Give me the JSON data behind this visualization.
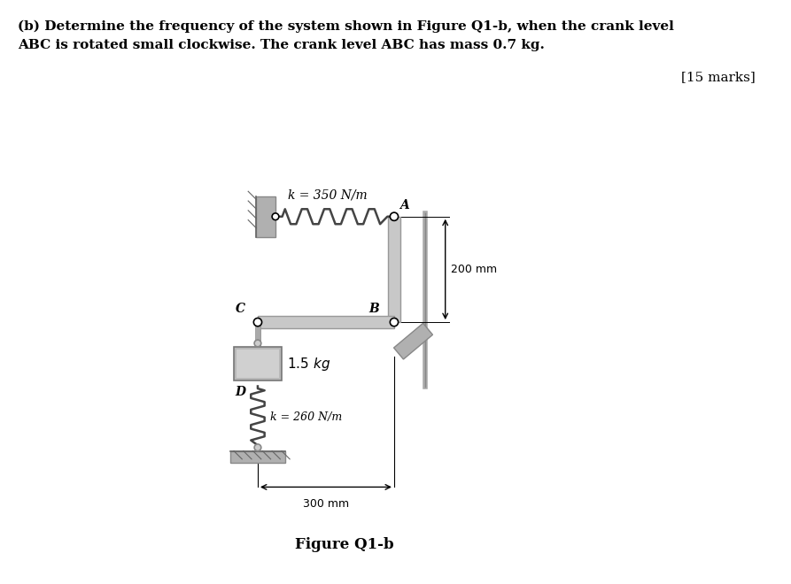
{
  "title_line1": "(b) Determine the frequency of the system shown in Figure Q1-b, when the crank level",
  "title_line2": "ABC is rotated small clockwise. The crank level ABC has mass 0.7 kg.",
  "figure_label": "Figure Q1-b",
  "marks_label": "[15 marks]",
  "k1_label": "k = 350 N/m",
  "k2_label": "k = 260 N/m",
  "dim1_label": "200 mm",
  "dim2_label": "300 mm",
  "point_A": "A",
  "point_B": "B",
  "point_C": "C",
  "point_D": "D",
  "bg_color": "#ffffff",
  "wall_color": "#b0b0b0",
  "beam_color": "#c8c8c8",
  "spring_color": "#444444",
  "mass_color": "#b8b8b8",
  "text_color": "#000000",
  "mass_inner_color": "#d0d0d0"
}
